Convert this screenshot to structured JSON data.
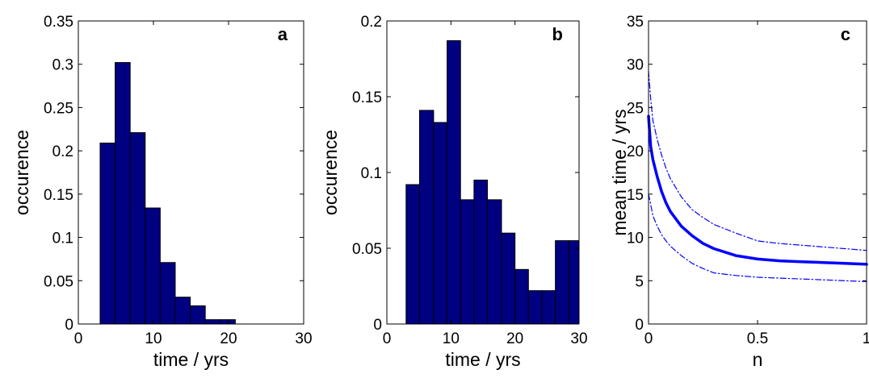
{
  "chart_data": [
    {
      "type": "bar",
      "panel_label": "a",
      "xlabel": "time / yrs",
      "ylabel": "occurence",
      "xlim": [
        0,
        30
      ],
      "ylim": [
        0,
        0.35
      ],
      "xticks": [
        "0",
        "10",
        "20",
        "30"
      ],
      "yticks": [
        "0",
        "0.05",
        "0.1",
        "0.15",
        "0.2",
        "0.25",
        "0.3",
        "0.35"
      ],
      "bin_edges": [
        2.9,
        4.9,
        6.9,
        8.9,
        10.9,
        12.9,
        14.9,
        16.9,
        18.9,
        20.9
      ],
      "values": [
        0.209,
        0.302,
        0.221,
        0.134,
        0.071,
        0.031,
        0.021,
        0.005,
        0.005
      ],
      "color": "#000080"
    },
    {
      "type": "bar",
      "panel_label": "b",
      "xlabel": "time / yrs",
      "ylabel": "occurence",
      "xlim": [
        0,
        30
      ],
      "ylim": [
        0,
        0.2
      ],
      "xticks": [
        "0",
        "10",
        "20",
        "30"
      ],
      "yticks": [
        "0",
        "0.05",
        "0.1",
        "0.15",
        "0.2"
      ],
      "bin_edges": [
        3,
        5.1,
        7.3,
        9.4,
        11.5,
        13.6,
        15.7,
        17.9,
        20,
        22.1,
        24.2,
        26.3,
        28.4,
        30
      ],
      "values": [
        0.092,
        0.141,
        0.133,
        0.187,
        0.082,
        0.095,
        0.082,
        0.06,
        0.036,
        0.022,
        0.022,
        0.055,
        0.055
      ],
      "color": "#000080"
    },
    {
      "type": "line",
      "panel_label": "c",
      "xlabel": "n",
      "ylabel": "mean time / yrs",
      "xlim": [
        0,
        1
      ],
      "ylim": [
        0,
        35
      ],
      "xticks": [
        "0",
        "0.5",
        "1"
      ],
      "yticks": [
        "0",
        "5",
        "10",
        "15",
        "20",
        "25",
        "30",
        "35"
      ],
      "color": "#0000ff",
      "series": [
        {
          "style": "solid",
          "x": [
            0,
            0.01,
            0.02,
            0.04,
            0.06,
            0.08,
            0.1,
            0.15,
            0.2,
            0.25,
            0.3,
            0.4,
            0.5,
            0.6,
            0.7,
            0.8,
            0.9,
            1.0
          ],
          "y": [
            24,
            20.5,
            19,
            17,
            15.3,
            14,
            13,
            11.3,
            10.2,
            9.3,
            8.7,
            7.9,
            7.5,
            7.3,
            7.2,
            7.1,
            7.0,
            6.9
          ]
        },
        {
          "style": "dash-dot",
          "x": [
            0,
            0.01,
            0.02,
            0.04,
            0.06,
            0.08,
            0.1,
            0.15,
            0.2,
            0.25,
            0.3,
            0.4,
            0.5,
            0.6,
            0.7,
            0.8,
            0.9,
            1.0
          ],
          "y": [
            29.2,
            26,
            23.5,
            21.3,
            19.5,
            18,
            16.8,
            14.7,
            13.2,
            12.3,
            11.5,
            10.5,
            9.6,
            9.3,
            9.1,
            8.9,
            8.7,
            8.5
          ]
        },
        {
          "style": "dash-dot",
          "x": [
            0,
            0.01,
            0.02,
            0.04,
            0.06,
            0.08,
            0.1,
            0.15,
            0.2,
            0.25,
            0.3,
            0.4,
            0.5,
            0.6,
            0.7,
            0.8,
            0.9,
            1.0
          ],
          "y": [
            15,
            13.8,
            12.5,
            11.3,
            10.3,
            9.6,
            9.0,
            7.9,
            7.0,
            6.4,
            5.9,
            5.6,
            5.4,
            5.3,
            5.2,
            5.1,
            5.0,
            4.9
          ]
        }
      ]
    }
  ]
}
